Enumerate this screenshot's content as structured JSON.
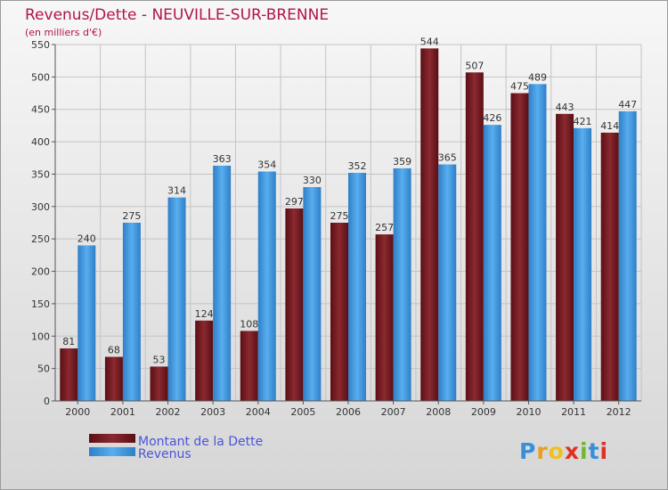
{
  "chart_data": {
    "type": "bar",
    "title": "Revenus/Dette - NEUVILLE-SUR-BRENNE",
    "subtitle": "(en milliers d'€)",
    "categories": [
      "2000",
      "2001",
      "2002",
      "2003",
      "2004",
      "2005",
      "2006",
      "2007",
      "2008",
      "2009",
      "2010",
      "2011",
      "2012"
    ],
    "series": [
      {
        "name": "Montant de la Dette",
        "color": "#7a1f25",
        "values": [
          81,
          68,
          53,
          124,
          108,
          297,
          275,
          257,
          544,
          507,
          475,
          443,
          414
        ]
      },
      {
        "name": "Revenus",
        "color": "#4aa1e6",
        "values": [
          240,
          275,
          314,
          363,
          354,
          330,
          352,
          359,
          365,
          426,
          489,
          421,
          447
        ]
      }
    ],
    "ylim": [
      0,
      550
    ],
    "yticks": [
      0,
      50,
      100,
      150,
      200,
      250,
      300,
      350,
      400,
      450,
      500,
      550
    ],
    "grid": true,
    "legend": "bottom-left"
  },
  "brand": {
    "letters": [
      "P",
      "r",
      "o",
      "x",
      "i",
      "t",
      "i"
    ],
    "colors": [
      "#3a8fd8",
      "#e8a020",
      "#f0c020",
      "#e03020",
      "#70b830",
      "#3a8fd8",
      "#e03020"
    ]
  }
}
